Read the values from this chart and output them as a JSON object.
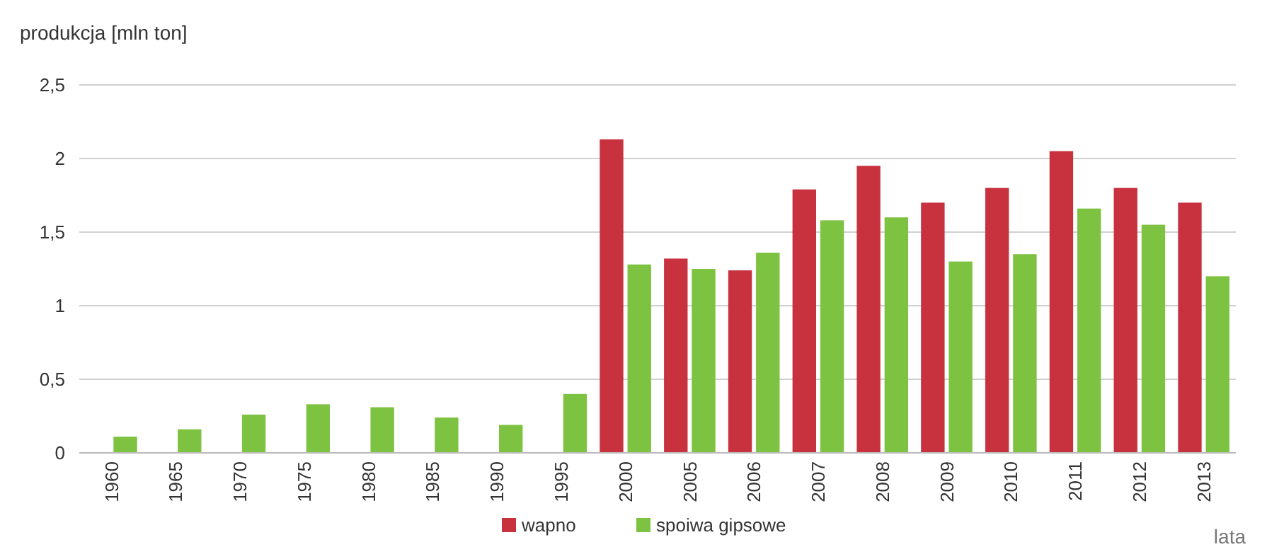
{
  "chart_data": {
    "type": "bar",
    "ylabel": "produkcja [mln ton]",
    "xlabel": "lata",
    "categories": [
      "1960",
      "1965",
      "1970",
      "1975",
      "1980",
      "1985",
      "1990",
      "1995",
      "2000",
      "2005",
      "2006",
      "2007",
      "2008",
      "2009",
      "2010",
      "2011",
      "2012",
      "2013"
    ],
    "series": [
      {
        "name": "wapno",
        "color": "#c8323f",
        "values": [
          null,
          null,
          null,
          null,
          null,
          null,
          null,
          null,
          2.13,
          1.32,
          1.24,
          1.79,
          1.95,
          1.7,
          1.8,
          2.05,
          1.8,
          1.7
        ]
      },
      {
        "name": "spoiwa gipsowe",
        "color": "#7dc241",
        "values": [
          0.11,
          0.16,
          0.26,
          0.33,
          0.31,
          0.24,
          0.19,
          0.4,
          1.28,
          1.25,
          1.36,
          1.58,
          1.6,
          1.3,
          1.35,
          1.66,
          1.55,
          1.2
        ]
      }
    ],
    "ylim": [
      0,
      2.5
    ],
    "yticks": [
      {
        "value": 0,
        "label": "0"
      },
      {
        "value": 0.5,
        "label": "0,5"
      },
      {
        "value": 1,
        "label": "1"
      },
      {
        "value": 1.5,
        "label": "1,5"
      },
      {
        "value": 2,
        "label": "2"
      },
      {
        "value": 2.5,
        "label": "2,5"
      }
    ],
    "grid": "y",
    "legend": "bottom"
  }
}
